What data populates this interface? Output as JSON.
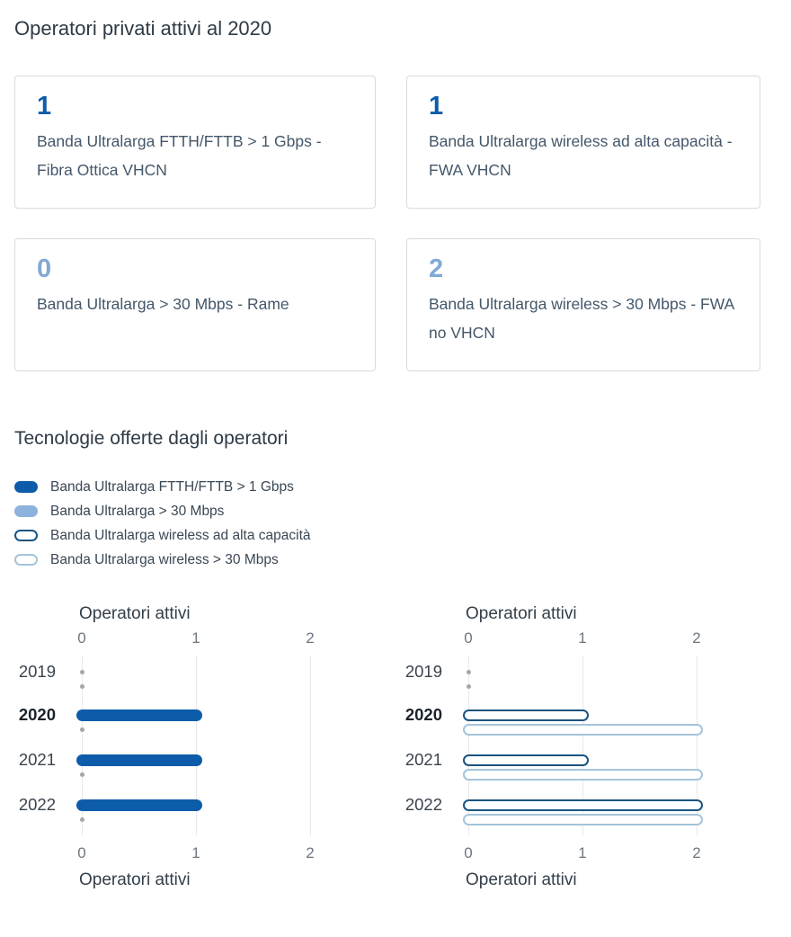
{
  "sections": {
    "operators_title": "Operatori privati attivi al 2020",
    "technologies_title": "Tecnologie offerte dagli operatori"
  },
  "stats": [
    {
      "value": "1",
      "tone": "dark",
      "label": "Banda Ultralarga FTTH/FTTB > 1 Gbps - Fibra Ottica VHCN"
    },
    {
      "value": "1",
      "tone": "dark",
      "label": "Banda Ultralarga wireless ad alta capacità - FWA VHCN"
    },
    {
      "value": "0",
      "tone": "light",
      "label": "Banda Ultralarga > 30 Mbps - Rame"
    },
    {
      "value": "2",
      "tone": "light",
      "label": "Banda Ultralarga wireless > 30 Mbps - FWA no VHCN"
    }
  ],
  "legend": [
    {
      "label": "Banda Ultralarga FTTH/FTTB > 1 Gbps",
      "swatch": "filled-dark"
    },
    {
      "label": "Banda Ultralarga > 30 Mbps",
      "swatch": "filled-light"
    },
    {
      "label": "Banda Ultralarga wireless ad alta capacità",
      "swatch": "outline-dark"
    },
    {
      "label": "Banda Ultralarga wireless > 30 Mbps",
      "swatch": "outline-light"
    }
  ],
  "colors": {
    "accent_dark": "#0d5ca9",
    "accent_light": "#8cb3dd",
    "outline_dark": "#1a5480",
    "outline_light": "#a5c4da",
    "stat_value_dark": "#0d5ca9",
    "stat_value_light": "#7fa9d6",
    "zero_dot": "#a6a6a6",
    "gridline": "#e8e8e8"
  },
  "chart_data": [
    {
      "type": "bar",
      "orientation": "horizontal",
      "title_top": "Operatori attivi",
      "title_bottom": "Operatori attivi",
      "categories": [
        "2019",
        "2020",
        "2021",
        "2022"
      ],
      "highlighted_category": "2020",
      "xlim": [
        0,
        2
      ],
      "xticks": [
        0,
        1,
        2
      ],
      "grid": true,
      "series": [
        {
          "name": "Banda Ultralarga FTTH/FTTB > 1 Gbps",
          "style": "filled-dark",
          "values": [
            0,
            1,
            1,
            1
          ]
        },
        {
          "name": "Banda Ultralarga > 30 Mbps",
          "style": "filled-light",
          "values": [
            0,
            0,
            0,
            0
          ]
        }
      ]
    },
    {
      "type": "bar",
      "orientation": "horizontal",
      "title_top": "Operatori attivi",
      "title_bottom": "Operatori attivi",
      "categories": [
        "2019",
        "2020",
        "2021",
        "2022"
      ],
      "highlighted_category": "2020",
      "xlim": [
        0,
        2
      ],
      "xticks": [
        0,
        1,
        2
      ],
      "grid": true,
      "series": [
        {
          "name": "Banda Ultralarga wireless ad alta capacità",
          "style": "outline-dark",
          "values": [
            0,
            1,
            1,
            2
          ]
        },
        {
          "name": "Banda Ultralarga wireless > 30 Mbps",
          "style": "outline-light",
          "values": [
            0,
            2,
            2,
            2
          ]
        }
      ]
    }
  ]
}
